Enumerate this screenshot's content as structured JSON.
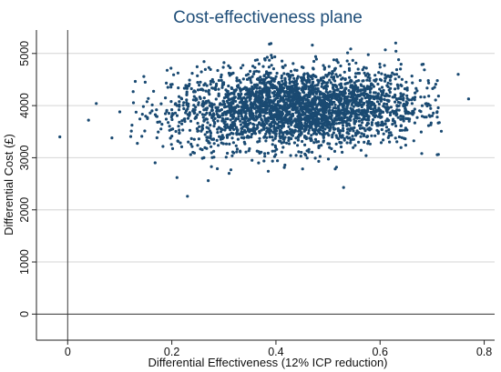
{
  "chart_data": {
    "type": "scatter",
    "title": "Cost-effectiveness plane",
    "xlabel": "Differential Effectiveness (12% ICP reduction)",
    "ylabel": "Differential Cost (£)",
    "xlim": [
      -0.06,
      0.82
    ],
    "ylim": [
      -500,
      5450
    ],
    "x_ticks": [
      "0",
      "0.2",
      "0.4",
      "0.6",
      "0.8"
    ],
    "y_ticks": [
      "0",
      "1000",
      "2000",
      "3000",
      "4000",
      "5000"
    ],
    "grid": "horizontal",
    "reference_lines": {
      "x": 0,
      "y": 0
    },
    "point_color": "#1a4a72",
    "cloud": {
      "count": 3000,
      "x_mean": 0.44,
      "x_sd": 0.12,
      "y_mean": 3950,
      "y_sd": 380,
      "x_range": [
        0.12,
        0.72
      ],
      "y_range": [
        2700,
        5200
      ]
    },
    "outliers": [
      {
        "x": -0.015,
        "y": 3400
      },
      {
        "x": 0.04,
        "y": 3720
      },
      {
        "x": 0.055,
        "y": 4040
      },
      {
        "x": 0.085,
        "y": 3380
      },
      {
        "x": 0.1,
        "y": 3880
      },
      {
        "x": 0.23,
        "y": 2260
      },
      {
        "x": 0.21,
        "y": 2620
      },
      {
        "x": 0.27,
        "y": 2560
      },
      {
        "x": 0.31,
        "y": 2700
      },
      {
        "x": 0.53,
        "y": 2430
      },
      {
        "x": 0.47,
        "y": 5160
      },
      {
        "x": 0.63,
        "y": 5200
      },
      {
        "x": 0.61,
        "y": 5070
      },
      {
        "x": 0.68,
        "y": 3080
      },
      {
        "x": 0.71,
        "y": 4480
      },
      {
        "x": 0.75,
        "y": 4600
      },
      {
        "x": 0.77,
        "y": 4130
      }
    ]
  }
}
